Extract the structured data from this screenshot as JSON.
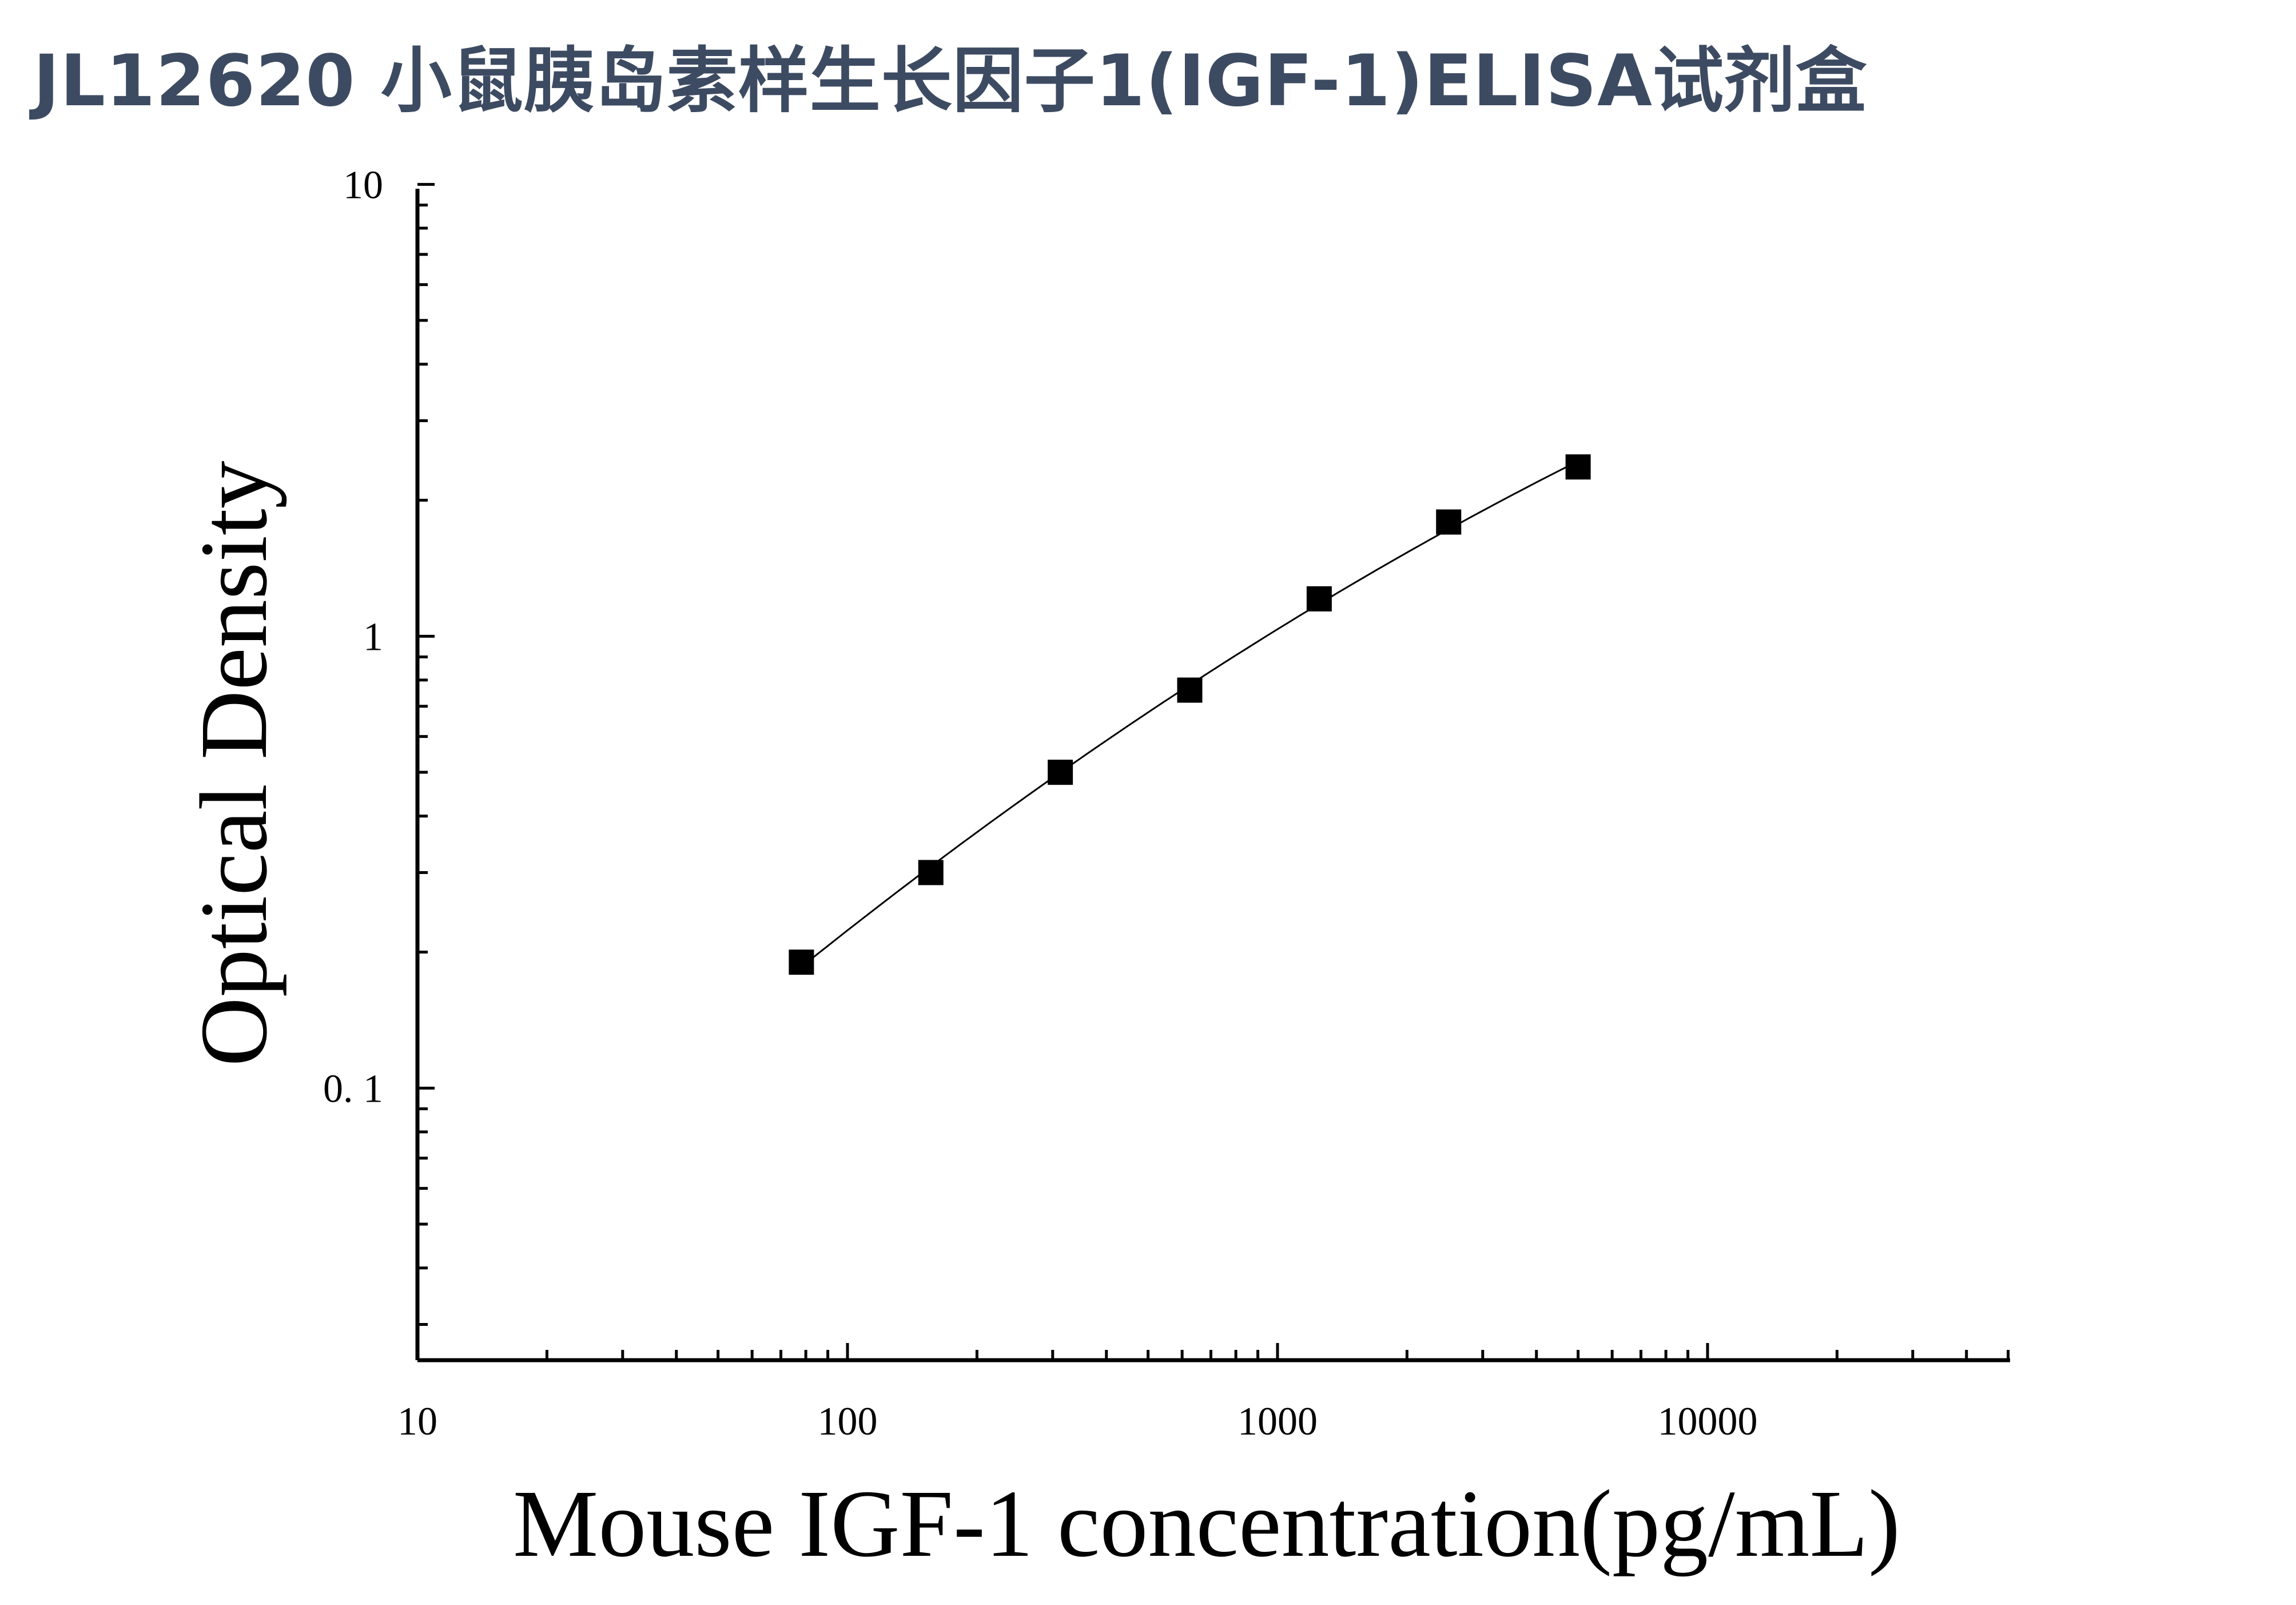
{
  "title": "JL12620 小鼠胰岛素样生长因子1(IGF-1)ELISA试剂盒",
  "chart_data": {
    "type": "scatter",
    "x_scale": "log",
    "y_scale": "log",
    "xlabel": "Mouse IGF-1 concentration(pg/mL)",
    "ylabel": "Optical Density",
    "xlim": [
      10,
      50000
    ],
    "ylim": [
      0.025,
      10
    ],
    "x_ticks": [
      10,
      100,
      1000,
      10000
    ],
    "x_tick_labels": [
      "10",
      "100",
      "1000",
      "10000"
    ],
    "y_ticks": [
      0.1,
      1,
      10
    ],
    "y_tick_labels": [
      "0. 1",
      "1",
      "10"
    ],
    "series": [
      {
        "x": [
          78.125,
          156.25,
          312.5,
          625,
          1250,
          2500,
          5000
        ],
        "y": [
          0.19,
          0.3,
          0.5,
          0.76,
          1.21,
          1.79,
          2.37
        ],
        "marker": "square",
        "color": "#000000",
        "fit_line": true
      }
    ],
    "grid": false,
    "legend": "none"
  }
}
